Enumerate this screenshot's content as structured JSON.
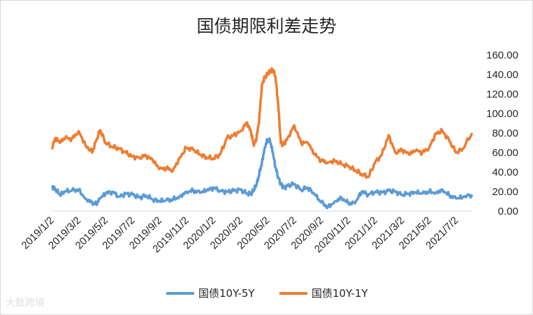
{
  "chart_data": {
    "type": "line",
    "title": "国债期限利差走势",
    "xlabel": "",
    "ylabel": "",
    "ylim": [
      0,
      160
    ],
    "y_ticks": [
      "0.00",
      "20.00",
      "40.00",
      "60.00",
      "80.00",
      "100.00",
      "120.00",
      "140.00",
      "160.00"
    ],
    "x_ticks": [
      "2019/1/2",
      "2019/3/2",
      "2019/5/2",
      "2019/7/2",
      "2019/9/2",
      "2019/11/2",
      "2020/1/2",
      "2020/3/2",
      "2020/5/2",
      "2020/7/2",
      "2020/9/2",
      "2020/11/2",
      "2021/1/2",
      "2021/3/2",
      "2021/5/2",
      "2021/7/2"
    ],
    "x_tick_months": [
      0,
      2,
      4,
      6,
      8,
      10,
      12,
      14,
      16,
      18,
      20,
      22,
      24,
      26,
      28,
      30
    ],
    "x_range_months": [
      0,
      31.2
    ],
    "grid": false,
    "legend_position": "bottom",
    "series": [
      {
        "name": "国债10Y-5Y",
        "color": "#5b9bd5",
        "x_months": [
          0,
          0.3,
          0.6,
          1,
          1.5,
          2,
          2.5,
          3,
          3.3,
          3.6,
          4,
          4.5,
          5,
          5.5,
          6,
          6.5,
          7,
          7.5,
          8,
          8.5,
          9,
          9.5,
          10,
          10.5,
          11,
          11.5,
          12,
          12.5,
          13,
          13.5,
          14,
          14.5,
          14.8,
          15,
          15.2,
          15.4,
          15.6,
          15.8,
          16,
          16.2,
          16.4,
          16.6,
          16.8,
          17,
          17.2,
          17.5,
          18,
          18.5,
          19,
          19.5,
          20,
          20.5,
          21,
          21.5,
          22,
          22.5,
          23,
          23.5,
          24,
          24.5,
          25,
          25.5,
          26,
          26.5,
          27,
          27.5,
          28,
          28.5,
          29,
          29.5,
          30,
          30.5,
          31.2
        ],
        "values": [
          26,
          22,
          17,
          20,
          21,
          22,
          13,
          9,
          7,
          13,
          18,
          20,
          15,
          18,
          17,
          14,
          16,
          12,
          10,
          11,
          12,
          15,
          20,
          21,
          19,
          21,
          24,
          21,
          20,
          21,
          22,
          18,
          18,
          22,
          27,
          38,
          50,
          65,
          73,
          72,
          60,
          45,
          35,
          28,
          24,
          26,
          28,
          22,
          24,
          17,
          9,
          4,
          10,
          14,
          8,
          8,
          20,
          17,
          20,
          19,
          21,
          20,
          17,
          18,
          19,
          18,
          20,
          19,
          22,
          16,
          13,
          14,
          17
        ]
      },
      {
        "name": "国债10Y-1Y",
        "color": "#ed7d31",
        "x_months": [
          0,
          0.3,
          0.6,
          1,
          1.5,
          2,
          2.5,
          3,
          3.3,
          3.6,
          4,
          4.5,
          5,
          5.5,
          6,
          6.5,
          7,
          7.5,
          8,
          8.5,
          9,
          9.5,
          10,
          10.5,
          11,
          11.5,
          12,
          12.5,
          13,
          13.5,
          14,
          14.5,
          14.8,
          15,
          15.2,
          15.4,
          15.6,
          15.8,
          16,
          16.2,
          16.4,
          16.6,
          16.8,
          17,
          17.2,
          17.5,
          18,
          18.5,
          19,
          19.5,
          20,
          20.5,
          21,
          21.5,
          22,
          22.5,
          23,
          23.5,
          24,
          24.5,
          25,
          25.5,
          26,
          26.5,
          27,
          27.5,
          28,
          28.5,
          29,
          29.5,
          30,
          30.5,
          31.2
        ],
        "values": [
          65,
          75,
          70,
          75,
          74,
          82,
          68,
          60,
          72,
          83,
          70,
          66,
          64,
          60,
          56,
          55,
          57,
          52,
          43,
          44,
          42,
          55,
          65,
          63,
          58,
          55,
          54,
          58,
          75,
          78,
          82,
          91,
          80,
          67,
          75,
          95,
          130,
          137,
          140,
          143,
          145,
          138,
          110,
          70,
          68,
          75,
          88,
          70,
          70,
          58,
          52,
          50,
          52,
          48,
          46,
          42,
          38,
          35,
          50,
          58,
          78,
          60,
          63,
          58,
          62,
          60,
          65,
          80,
          82,
          72,
          60,
          64,
          80
        ]
      }
    ]
  },
  "watermark": "大数跨境"
}
